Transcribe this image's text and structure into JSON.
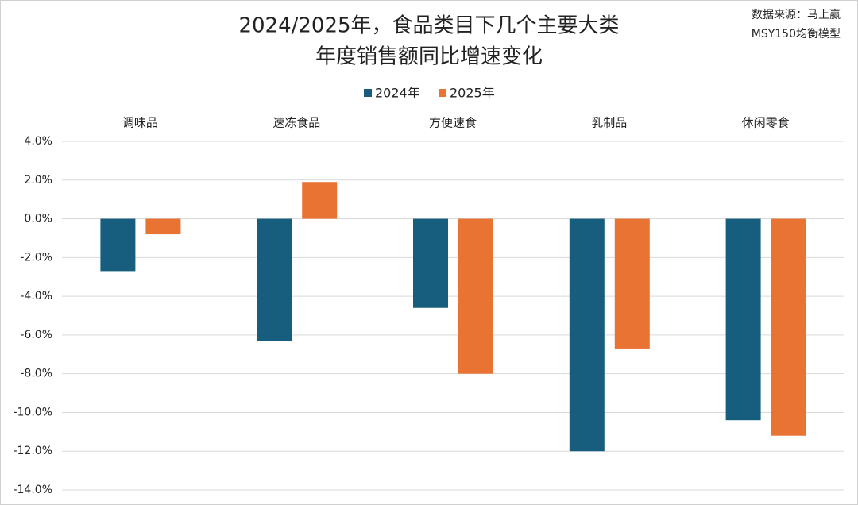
{
  "chart_data": {
    "type": "bar",
    "title": [
      "2024/2025年，食品类目下几个主要大类",
      "年度销售额同比增速变化"
    ],
    "source": [
      "数据来源：马上赢",
      "MSY150均衡模型"
    ],
    "categories": [
      "调味品",
      "速冻食品",
      "方便速食",
      "乳制品",
      "休闲零食"
    ],
    "series": [
      {
        "name": "2024年",
        "color": "#175e7e",
        "values": [
          -2.7,
          -6.3,
          -4.6,
          -12.0,
          -10.4
        ]
      },
      {
        "name": "2025年",
        "color": "#e97332",
        "values": [
          -0.8,
          1.9,
          -8.0,
          -6.7,
          -11.2
        ]
      }
    ],
    "ylim": [
      -14,
      4
    ],
    "yticks": [
      {
        "value": 4,
        "label": "4.0%"
      },
      {
        "value": 2,
        "label": "2.0%"
      },
      {
        "value": 0,
        "label": "0.0%"
      },
      {
        "value": -2,
        "label": "-2.0%"
      },
      {
        "value": -4,
        "label": "-4.0%"
      },
      {
        "value": -6,
        "label": "-6.0%"
      },
      {
        "value": -8,
        "label": "-8.0%"
      },
      {
        "value": -10,
        "label": "-10.0%"
      },
      {
        "value": -12,
        "label": "-12.0%"
      },
      {
        "value": -14,
        "label": "-14.0%"
      }
    ],
    "grid": true
  }
}
